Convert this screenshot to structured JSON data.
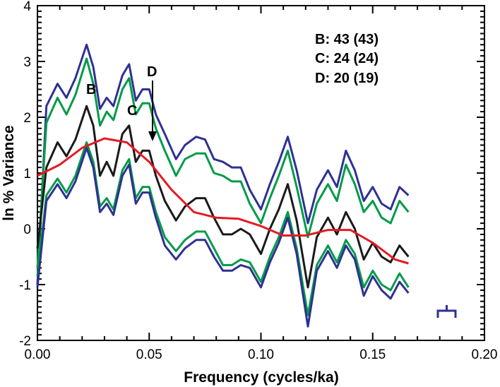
{
  "chart_data": {
    "type": "line",
    "xlabel": "Frequency (cycles/ka)",
    "ylabel": "ln % Variance",
    "xlim": [
      0,
      0.2
    ],
    "ylim": [
      -2,
      4
    ],
    "x_ticks": [
      "0.00",
      "0.05",
      "0.10",
      "0.15",
      "0.20"
    ],
    "y_ticks": [
      "-2",
      "-1",
      "0",
      "1",
      "2",
      "3",
      "4"
    ],
    "x": [
      0.0,
      0.004,
      0.009,
      0.013,
      0.017,
      0.022,
      0.025,
      0.028,
      0.031,
      0.034,
      0.038,
      0.041,
      0.044,
      0.047,
      0.05,
      0.053,
      0.057,
      0.062,
      0.066,
      0.071,
      0.075,
      0.079,
      0.083,
      0.087,
      0.091,
      0.095,
      0.1,
      0.104,
      0.108,
      0.112,
      0.116,
      0.121,
      0.125,
      0.13,
      0.134,
      0.138,
      0.142,
      0.146,
      0.15,
      0.154,
      0.158,
      0.162,
      0.166
    ],
    "series": [
      {
        "color": "#2e3192",
        "values": [
          -1.0,
          2.2,
          2.6,
          2.35,
          2.7,
          3.3,
          2.9,
          2.15,
          2.35,
          2.2,
          2.75,
          2.95,
          2.3,
          2.5,
          2.5,
          2.05,
          1.7,
          1.25,
          1.5,
          1.65,
          1.6,
          1.25,
          1.2,
          1.1,
          1.1,
          0.7,
          0.35,
          0.8,
          1.2,
          1.65,
          1.05,
          0.1,
          0.7,
          1.05,
          0.75,
          1.4,
          1.05,
          0.5,
          0.75,
          0.45,
          0.35,
          0.75,
          0.6
        ]
      },
      {
        "color": "#009b48",
        "values": [
          -0.7,
          1.9,
          2.35,
          2.05,
          2.4,
          3.05,
          2.6,
          1.85,
          2.1,
          1.95,
          2.5,
          2.7,
          2.05,
          2.25,
          2.25,
          1.8,
          1.4,
          0.95,
          1.25,
          1.35,
          1.35,
          1.0,
          0.95,
          0.85,
          0.85,
          0.45,
          0.1,
          0.55,
          0.95,
          1.4,
          0.75,
          -0.15,
          0.45,
          0.8,
          0.5,
          1.15,
          0.8,
          0.3,
          0.5,
          0.2,
          0.1,
          0.5,
          0.3
        ]
      },
      {
        "color": "#1a1a1a",
        "values": [
          -0.35,
          1.1,
          1.55,
          1.3,
          1.6,
          2.2,
          1.85,
          0.95,
          1.2,
          0.95,
          1.7,
          1.85,
          1.2,
          1.4,
          1.4,
          0.95,
          0.5,
          0.15,
          0.4,
          0.55,
          0.55,
          0.2,
          -0.1,
          -0.1,
          0.0,
          -0.1,
          -0.45,
          0.0,
          0.35,
          0.8,
          0.15,
          -1.05,
          -0.15,
          0.2,
          -0.1,
          0.3,
          0.0,
          -0.55,
          -0.25,
          -0.5,
          -0.6,
          -0.3,
          -0.5
        ]
      },
      {
        "color": "#009b48",
        "values": [
          -0.85,
          0.6,
          0.9,
          0.65,
          0.95,
          1.55,
          1.2,
          0.4,
          0.55,
          0.35,
          1.05,
          1.25,
          0.55,
          0.75,
          0.75,
          0.3,
          -0.15,
          -0.4,
          -0.2,
          -0.05,
          -0.05,
          -0.35,
          -0.65,
          -0.65,
          -0.55,
          -0.6,
          -0.95,
          -0.5,
          -0.15,
          0.3,
          -0.35,
          -1.55,
          -0.65,
          -0.3,
          -0.6,
          -0.2,
          -0.45,
          -1.05,
          -0.75,
          -1.0,
          -1.1,
          -0.8,
          -1.05
        ]
      },
      {
        "color": "#2e3192",
        "values": [
          -1.05,
          0.5,
          0.8,
          0.55,
          0.85,
          1.45,
          1.1,
          0.3,
          0.45,
          0.25,
          0.95,
          1.15,
          0.45,
          0.65,
          0.65,
          0.2,
          -0.3,
          -0.55,
          -0.35,
          -0.2,
          -0.2,
          -0.5,
          -0.75,
          -0.75,
          -0.65,
          -0.7,
          -1.05,
          -0.6,
          -0.25,
          0.2,
          -0.45,
          -1.75,
          -0.75,
          -0.4,
          -0.7,
          -0.3,
          -0.55,
          -1.2,
          -0.85,
          -1.1,
          -1.25,
          -0.95,
          -1.15
        ]
      },
      {
        "color": "#e31b23",
        "x": [
          0.0,
          0.01,
          0.02,
          0.03,
          0.04,
          0.05,
          0.06,
          0.07,
          0.08,
          0.09,
          0.1,
          0.11,
          0.12,
          0.13,
          0.14,
          0.15,
          0.16,
          0.166
        ],
        "values": [
          0.95,
          1.15,
          1.45,
          1.62,
          1.55,
          1.2,
          0.7,
          0.3,
          0.2,
          0.18,
          0.05,
          -0.12,
          -0.12,
          -0.02,
          -0.02,
          -0.25,
          -0.55,
          -0.62
        ]
      }
    ],
    "annotations": {
      "peak_b": "B",
      "peak_c": "C",
      "peak_d": "D",
      "legend_b": "B: 43 (43)",
      "legend_c": "C: 24 (24)",
      "legend_d": "D: 20 (19)"
    },
    "grid": false
  }
}
